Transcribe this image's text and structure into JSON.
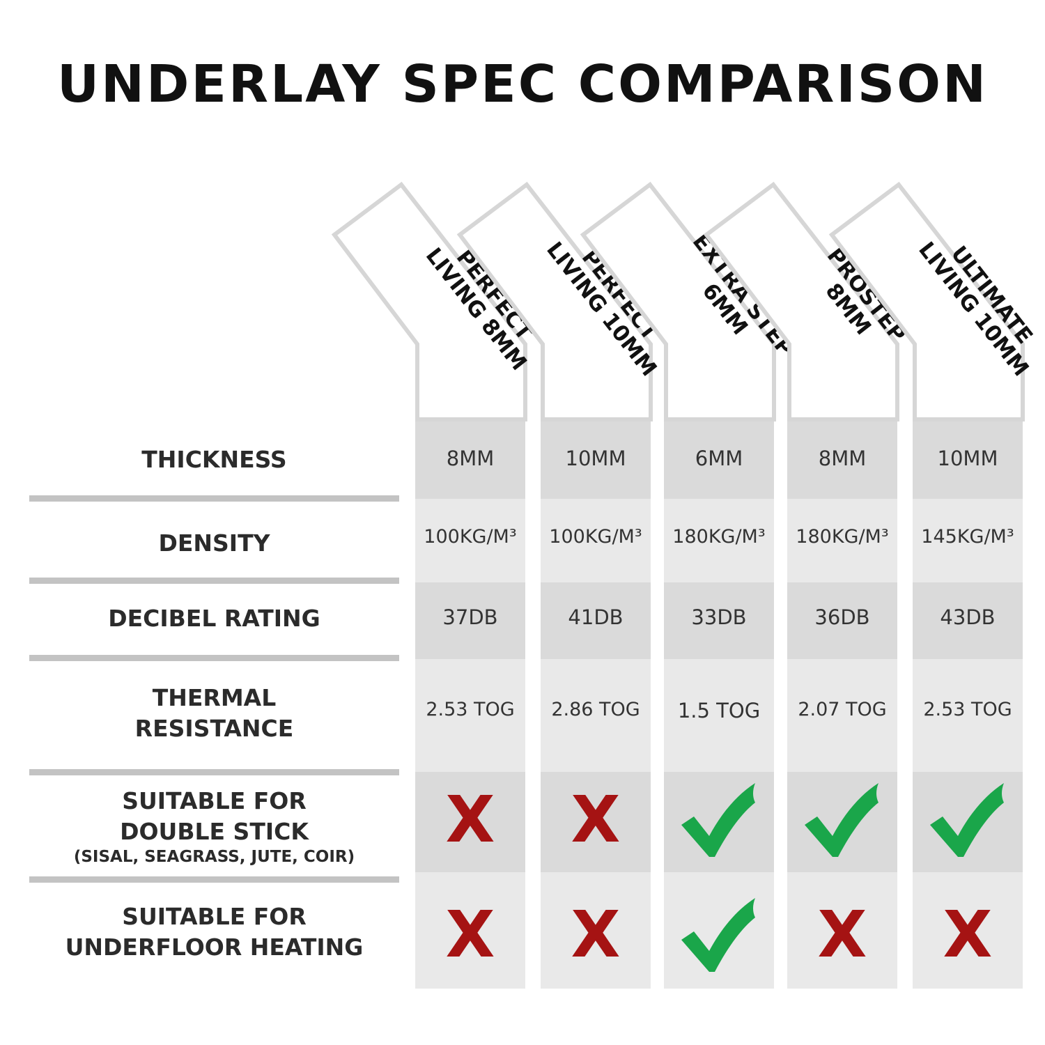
{
  "title": "UNDERLAY SPEC COMPARISON",
  "products": [
    {
      "name": "PERFECT\nLIVING 8MM"
    },
    {
      "name": "PERFECT\nLIVING 10MM"
    },
    {
      "name": "EXTRA STEP\n6MM"
    },
    {
      "name": "PROSTEP\n8MM"
    },
    {
      "name": "ULTIMATE\nLIVING 10MM"
    }
  ],
  "rows": [
    {
      "label": "THICKNESS",
      "values": [
        "8MM",
        "10MM",
        "6MM",
        "8MM",
        "10MM"
      ]
    },
    {
      "label": "DENSITY",
      "values": [
        "100KG/M³",
        "100KG/M³",
        "180KG/M³",
        "180KG/M³",
        "145KG/M³"
      ]
    },
    {
      "label": "DECIBEL RATING",
      "values": [
        "37DB",
        "41DB",
        "33DB",
        "36DB",
        "43DB"
      ]
    },
    {
      "label": "THERMAL\nRESISTANCE",
      "values": [
        "2.53 TOG",
        "2.86 TOG",
        "1.5 TOG",
        "2.07 TOG",
        "2.53 TOG"
      ]
    },
    {
      "label": "SUITABLE FOR\nDOUBLE STICK",
      "sublabel": "(SISAL, SEAGRASS, JUTE, COIR)",
      "values": [
        false,
        false,
        true,
        true,
        true
      ]
    },
    {
      "label": "SUITABLE FOR\nUNDERFLOOR HEATING",
      "values": [
        false,
        false,
        true,
        false,
        false
      ]
    }
  ],
  "symbols": {
    "yes": "check-icon",
    "no": "cross-icon",
    "yes_color": "#1aa64a",
    "no_color": "#a51313"
  },
  "colors": {
    "cell_light": "#e9e9e9",
    "cell_dark": "#dadada",
    "divider": "#c3c3c3",
    "header_border": "#d6d6d6"
  }
}
